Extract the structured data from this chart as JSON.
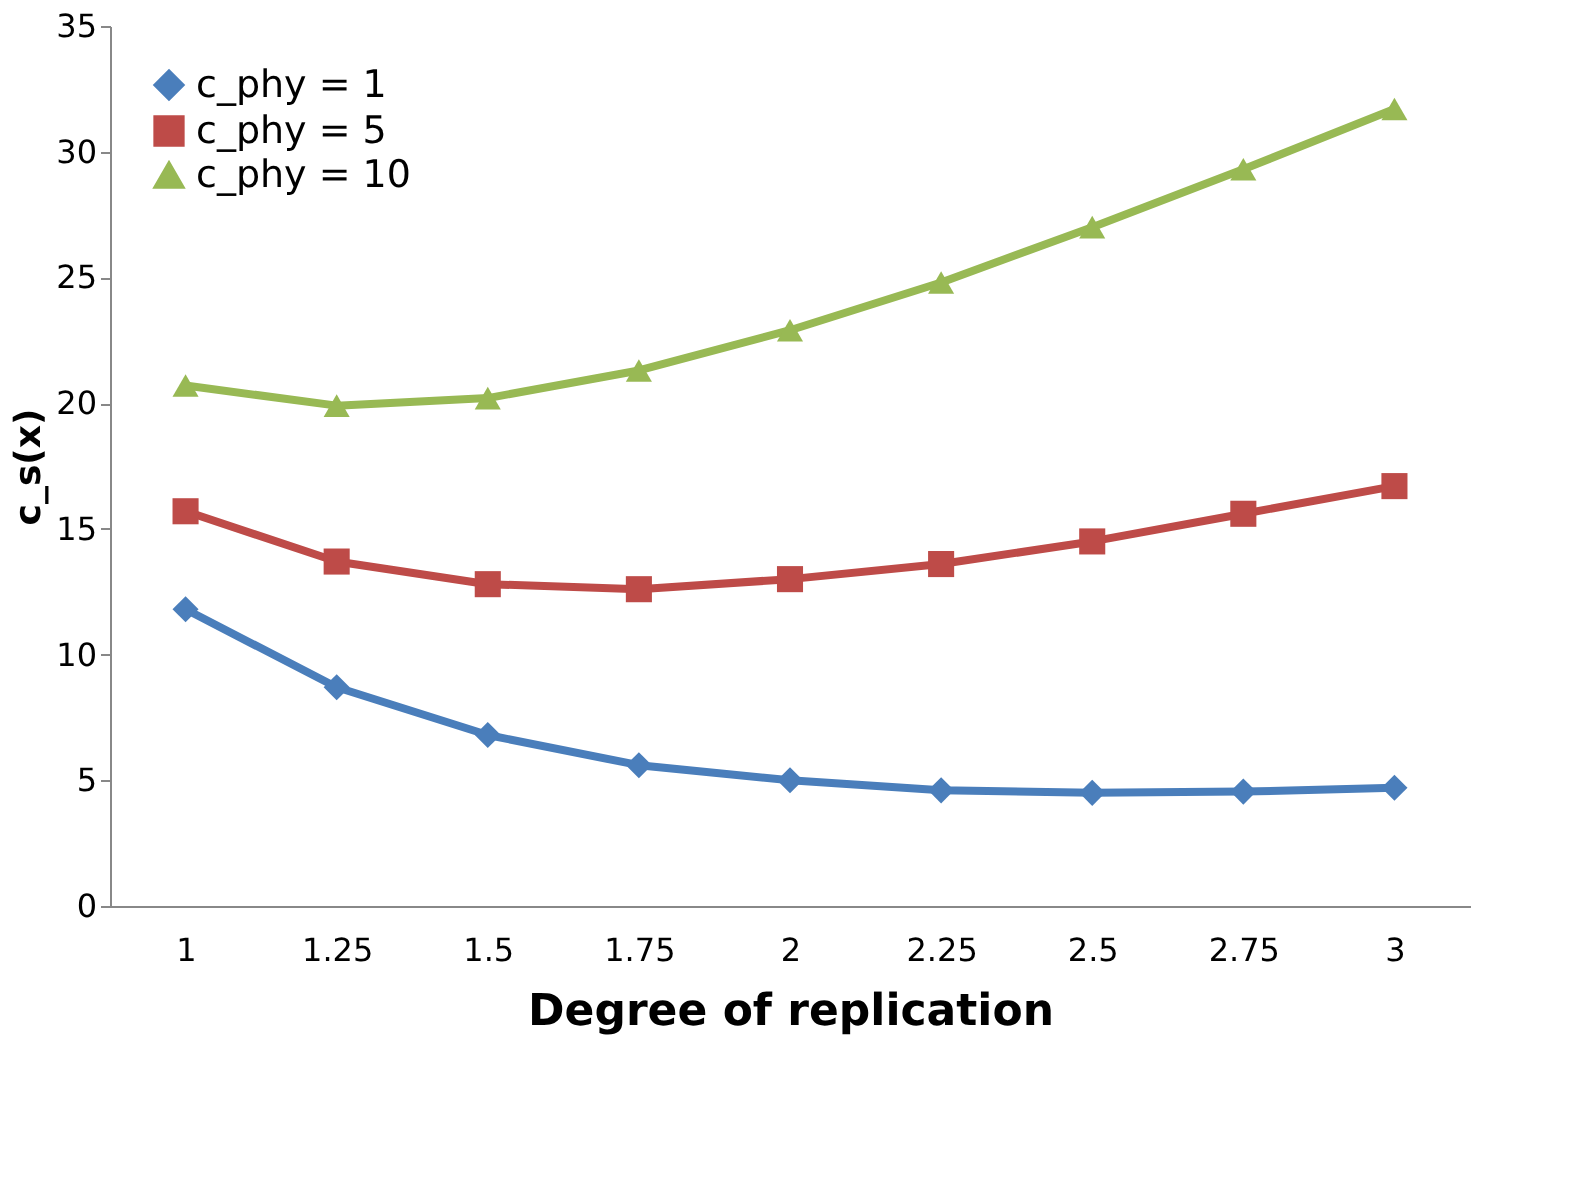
{
  "chart_data": {
    "type": "line",
    "xlabel": "Degree of replication",
    "ylabel": "c_s(x)",
    "categories": [
      "1",
      "1.25",
      "1.5",
      "1.75",
      "2",
      "2.25",
      "2.5",
      "2.75",
      "3"
    ],
    "series": [
      {
        "name": "c_phy = 1",
        "color": "#4a7ebb",
        "marker": "diamond",
        "values": [
          11.8,
          8.7,
          6.8,
          5.6,
          5.0,
          4.6,
          4.5,
          4.55,
          4.7
        ]
      },
      {
        "name": "c_phy = 5",
        "color": "#be4b48",
        "marker": "square",
        "values": [
          15.7,
          13.7,
          12.8,
          12.6,
          13.0,
          13.6,
          14.5,
          15.6,
          16.7
        ]
      },
      {
        "name": "c_phy = 10",
        "color": "#98b954",
        "marker": "triangle",
        "values": [
          20.7,
          19.9,
          20.2,
          21.3,
          22.9,
          24.8,
          27.0,
          29.3,
          31.7
        ]
      }
    ],
    "ylim": [
      0,
      35
    ],
    "yticks": [
      0,
      5,
      10,
      15,
      20,
      25,
      30,
      35
    ],
    "grid": false,
    "legend": "top left",
    "line_style": "solid"
  }
}
